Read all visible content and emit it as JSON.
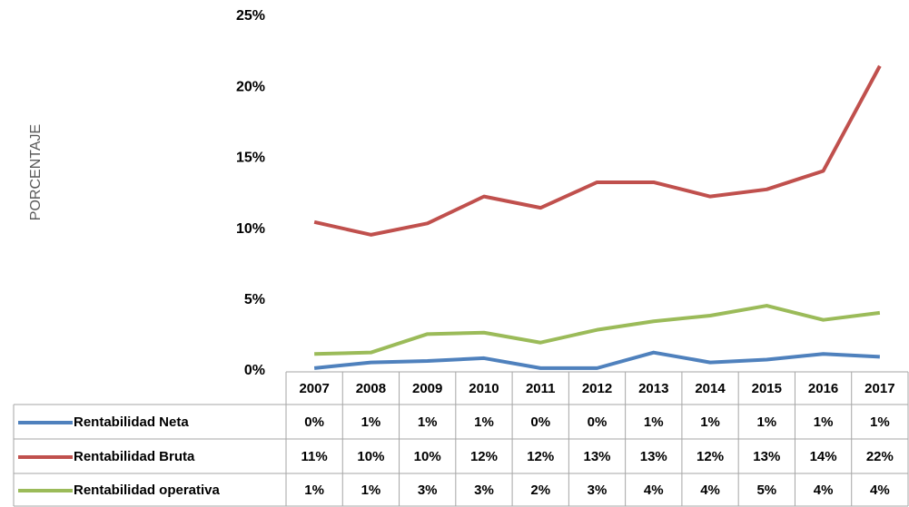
{
  "chart_data": {
    "type": "line",
    "y_axis_label": "PORCENTAJE",
    "categories": [
      "2007",
      "2008",
      "2009",
      "2010",
      "2011",
      "2012",
      "2013",
      "2014",
      "2015",
      "2016",
      "2017"
    ],
    "series": [
      {
        "name": "Rentabilidad Neta",
        "color": "#4f81bd",
        "values": [
          0.2,
          0.6,
          0.7,
          0.9,
          0.2,
          0.2,
          1.3,
          0.6,
          0.8,
          1.2,
          1.0
        ],
        "value_labels": [
          "0%",
          "1%",
          "1%",
          "1%",
          "0%",
          "0%",
          "1%",
          "1%",
          "1%",
          "1%",
          "1%"
        ]
      },
      {
        "name": "Rentabilidad Bruta",
        "color": "#c0504d",
        "values": [
          10.5,
          9.6,
          10.4,
          12.3,
          11.5,
          13.3,
          13.3,
          12.3,
          12.8,
          14.1,
          21.5
        ],
        "value_labels": [
          "11%",
          "10%",
          "10%",
          "12%",
          "12%",
          "13%",
          "13%",
          "12%",
          "13%",
          "14%",
          "22%"
        ]
      },
      {
        "name": "Rentabilidad operativa",
        "color": "#9bbb59",
        "values": [
          1.2,
          1.3,
          2.6,
          2.7,
          2.0,
          2.9,
          3.5,
          3.9,
          4.6,
          3.6,
          4.1
        ],
        "value_labels": [
          "1%",
          "1%",
          "3%",
          "3%",
          "2%",
          "3%",
          "4%",
          "4%",
          "5%",
          "4%",
          "4%"
        ]
      }
    ],
    "ylim": [
      0,
      25
    ],
    "yticks": [
      {
        "value": 0,
        "label": "0%"
      },
      {
        "value": 5,
        "label": "5%"
      },
      {
        "value": 10,
        "label": "10%"
      },
      {
        "value": 15,
        "label": "15%"
      },
      {
        "value": 20,
        "label": "20%"
      },
      {
        "value": 25,
        "label": "25%"
      }
    ],
    "grid": false
  }
}
